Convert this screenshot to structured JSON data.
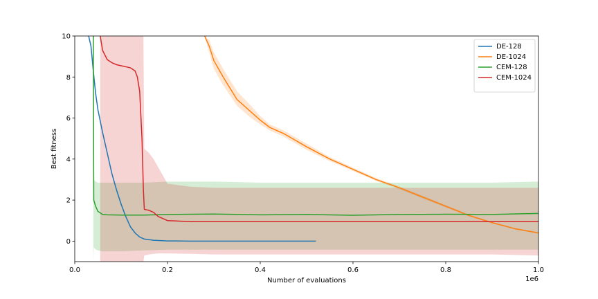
{
  "chart_data": {
    "type": "line",
    "title": "",
    "xlabel": "Number of evaluations",
    "ylabel": "Best fitness",
    "x_multiplier_label": "1e6",
    "xlim": [
      0,
      1.0
    ],
    "ylim": [
      -1,
      10
    ],
    "x_ticks": [
      {
        "value": 0.0,
        "label": "0.0"
      },
      {
        "value": 0.2,
        "label": "0.2"
      },
      {
        "value": 0.4,
        "label": "0.4"
      },
      {
        "value": 0.6,
        "label": "0.6"
      },
      {
        "value": 0.8,
        "label": "0.8"
      },
      {
        "value": 1.0,
        "label": "1.0"
      }
    ],
    "y_ticks": [
      {
        "value": 0,
        "label": "0"
      },
      {
        "value": 2,
        "label": "2"
      },
      {
        "value": 4,
        "label": "4"
      },
      {
        "value": 6,
        "label": "6"
      },
      {
        "value": 8,
        "label": "8"
      },
      {
        "value": 10,
        "label": "10"
      }
    ],
    "grid": false,
    "legend_position": "top-right",
    "series": [
      {
        "name": "DE-128",
        "color": "#1f77b4",
        "x": [
          0.03,
          0.035,
          0.04,
          0.045,
          0.05,
          0.06,
          0.07,
          0.08,
          0.09,
          0.1,
          0.11,
          0.12,
          0.13,
          0.14,
          0.15,
          0.17,
          0.2,
          0.25,
          0.3,
          0.4,
          0.52
        ],
        "y": [
          10,
          9.5,
          8.3,
          7.2,
          6.4,
          5.3,
          4.3,
          3.3,
          2.5,
          1.8,
          1.2,
          0.7,
          0.4,
          0.2,
          0.1,
          0.04,
          0.01,
          0.0,
          0.0,
          0.0,
          0.0
        ],
        "band_lower": [
          10,
          9.4,
          8.2,
          7.1,
          6.3,
          5.2,
          4.2,
          3.2,
          2.4,
          1.7,
          1.15,
          0.65,
          0.37,
          0.18,
          0.09,
          0.03,
          0.0,
          0.0,
          0.0,
          0.0,
          0.0
        ],
        "band_upper": [
          10,
          9.6,
          8.4,
          7.3,
          6.5,
          5.4,
          4.4,
          3.4,
          2.6,
          1.9,
          1.25,
          0.75,
          0.43,
          0.22,
          0.11,
          0.05,
          0.02,
          0.0,
          0.0,
          0.0,
          0.0
        ]
      },
      {
        "name": "DE-1024",
        "color": "#ff7f0e",
        "x": [
          0.28,
          0.29,
          0.3,
          0.32,
          0.35,
          0.38,
          0.4,
          0.42,
          0.45,
          0.5,
          0.55,
          0.6,
          0.65,
          0.7,
          0.75,
          0.8,
          0.85,
          0.9,
          0.95,
          1.0
        ],
        "y": [
          10,
          9.5,
          8.8,
          8.0,
          6.9,
          6.3,
          5.9,
          5.55,
          5.25,
          4.6,
          4.0,
          3.5,
          3.0,
          2.6,
          2.15,
          1.7,
          1.25,
          0.9,
          0.6,
          0.4
        ],
        "band_lower": [
          10,
          9.2,
          8.4,
          7.6,
          6.6,
          6.0,
          5.7,
          5.4,
          5.1,
          4.45,
          3.9,
          3.42,
          2.93,
          2.53,
          2.08,
          1.64,
          1.2,
          0.86,
          0.56,
          0.37
        ],
        "band_upper": [
          10,
          9.8,
          9.2,
          8.4,
          7.3,
          6.6,
          6.1,
          5.7,
          5.4,
          4.75,
          4.1,
          3.58,
          3.07,
          2.67,
          2.22,
          1.76,
          1.3,
          0.94,
          0.64,
          0.43
        ]
      },
      {
        "name": "CEM-128",
        "color": "#2ca02c",
        "x": [
          0.04,
          0.041,
          0.045,
          0.05,
          0.06,
          0.07,
          0.1,
          0.15,
          0.2,
          0.3,
          0.4,
          0.5,
          0.6,
          0.7,
          0.8,
          0.9,
          1.0
        ],
        "y": [
          10,
          2.0,
          1.7,
          1.45,
          1.3,
          1.28,
          1.27,
          1.27,
          1.3,
          1.32,
          1.28,
          1.3,
          1.26,
          1.3,
          1.31,
          1.3,
          1.35
        ],
        "band_lower": [
          -1,
          -0.3,
          -0.4,
          -0.45,
          -0.5,
          -0.5,
          -0.5,
          -0.45,
          -0.42,
          -0.42,
          -0.42,
          -0.42,
          -0.42,
          -0.42,
          -0.42,
          -0.42,
          -0.42
        ],
        "band_upper": [
          10,
          3.0,
          2.9,
          2.85,
          2.85,
          2.85,
          2.85,
          2.85,
          2.9,
          2.9,
          2.85,
          2.85,
          2.85,
          2.85,
          2.85,
          2.85,
          2.9
        ]
      },
      {
        "name": "CEM-1024",
        "color": "#d62728",
        "x": [
          0.055,
          0.06,
          0.07,
          0.08,
          0.09,
          0.1,
          0.11,
          0.12,
          0.13,
          0.135,
          0.14,
          0.145,
          0.148,
          0.15,
          0.16,
          0.17,
          0.18,
          0.2,
          0.25,
          0.3,
          0.4,
          0.5,
          0.6,
          0.7,
          0.8,
          0.9,
          1.0
        ],
        "y": [
          10,
          9.3,
          8.85,
          8.7,
          8.6,
          8.55,
          8.5,
          8.45,
          8.3,
          8.0,
          7.3,
          5.0,
          2.5,
          1.55,
          1.5,
          1.4,
          1.2,
          1.0,
          0.95,
          0.95,
          0.95,
          0.95,
          0.95,
          0.95,
          0.95,
          0.95,
          0.95
        ],
        "band_lower": [
          -1,
          -1,
          -1,
          -1,
          -1,
          -1,
          -1,
          -1,
          -1,
          -1,
          -1,
          -1,
          -1,
          -0.7,
          -0.65,
          -0.62,
          -0.6,
          -0.6,
          -0.62,
          -0.65,
          -0.65,
          -0.65,
          -0.65,
          -0.65,
          -0.65,
          -0.65,
          -0.7
        ],
        "band_upper": [
          10,
          10,
          10,
          10,
          10,
          10,
          10,
          10,
          10,
          10,
          10,
          10,
          10,
          4.5,
          4.3,
          4.0,
          3.6,
          2.8,
          2.65,
          2.6,
          2.6,
          2.6,
          2.6,
          2.6,
          2.6,
          2.6,
          2.6
        ]
      }
    ]
  }
}
